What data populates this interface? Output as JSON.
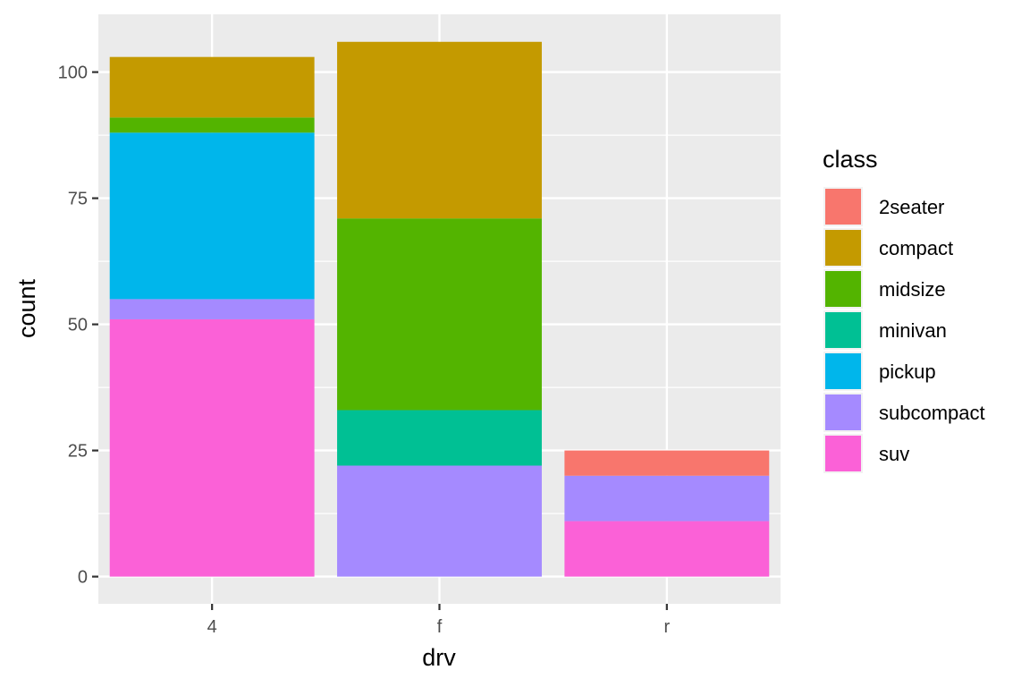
{
  "chart_data": {
    "type": "bar",
    "stacked": true,
    "xlabel": "drv",
    "ylabel": "count",
    "categories": [
      "4",
      "f",
      "r"
    ],
    "ylim": [
      0,
      108
    ],
    "yticks": [
      0,
      25,
      50,
      75,
      100
    ],
    "grid": true,
    "legend": {
      "title": "class",
      "position": "right"
    },
    "series": [
      {
        "name": "2seater",
        "color": "#F8766D",
        "values": [
          0,
          0,
          5
        ]
      },
      {
        "name": "compact",
        "color": "#C49A00",
        "values": [
          12,
          35,
          0
        ]
      },
      {
        "name": "midsize",
        "color": "#53B400",
        "values": [
          3,
          38,
          0
        ]
      },
      {
        "name": "minivan",
        "color": "#00C094",
        "values": [
          0,
          11,
          0
        ]
      },
      {
        "name": "pickup",
        "color": "#00B6EB",
        "values": [
          33,
          0,
          0
        ]
      },
      {
        "name": "subcompact",
        "color": "#A58AFF",
        "values": [
          4,
          22,
          9
        ]
      },
      {
        "name": "suv",
        "color": "#FB61D7",
        "values": [
          51,
          0,
          11
        ]
      }
    ]
  }
}
